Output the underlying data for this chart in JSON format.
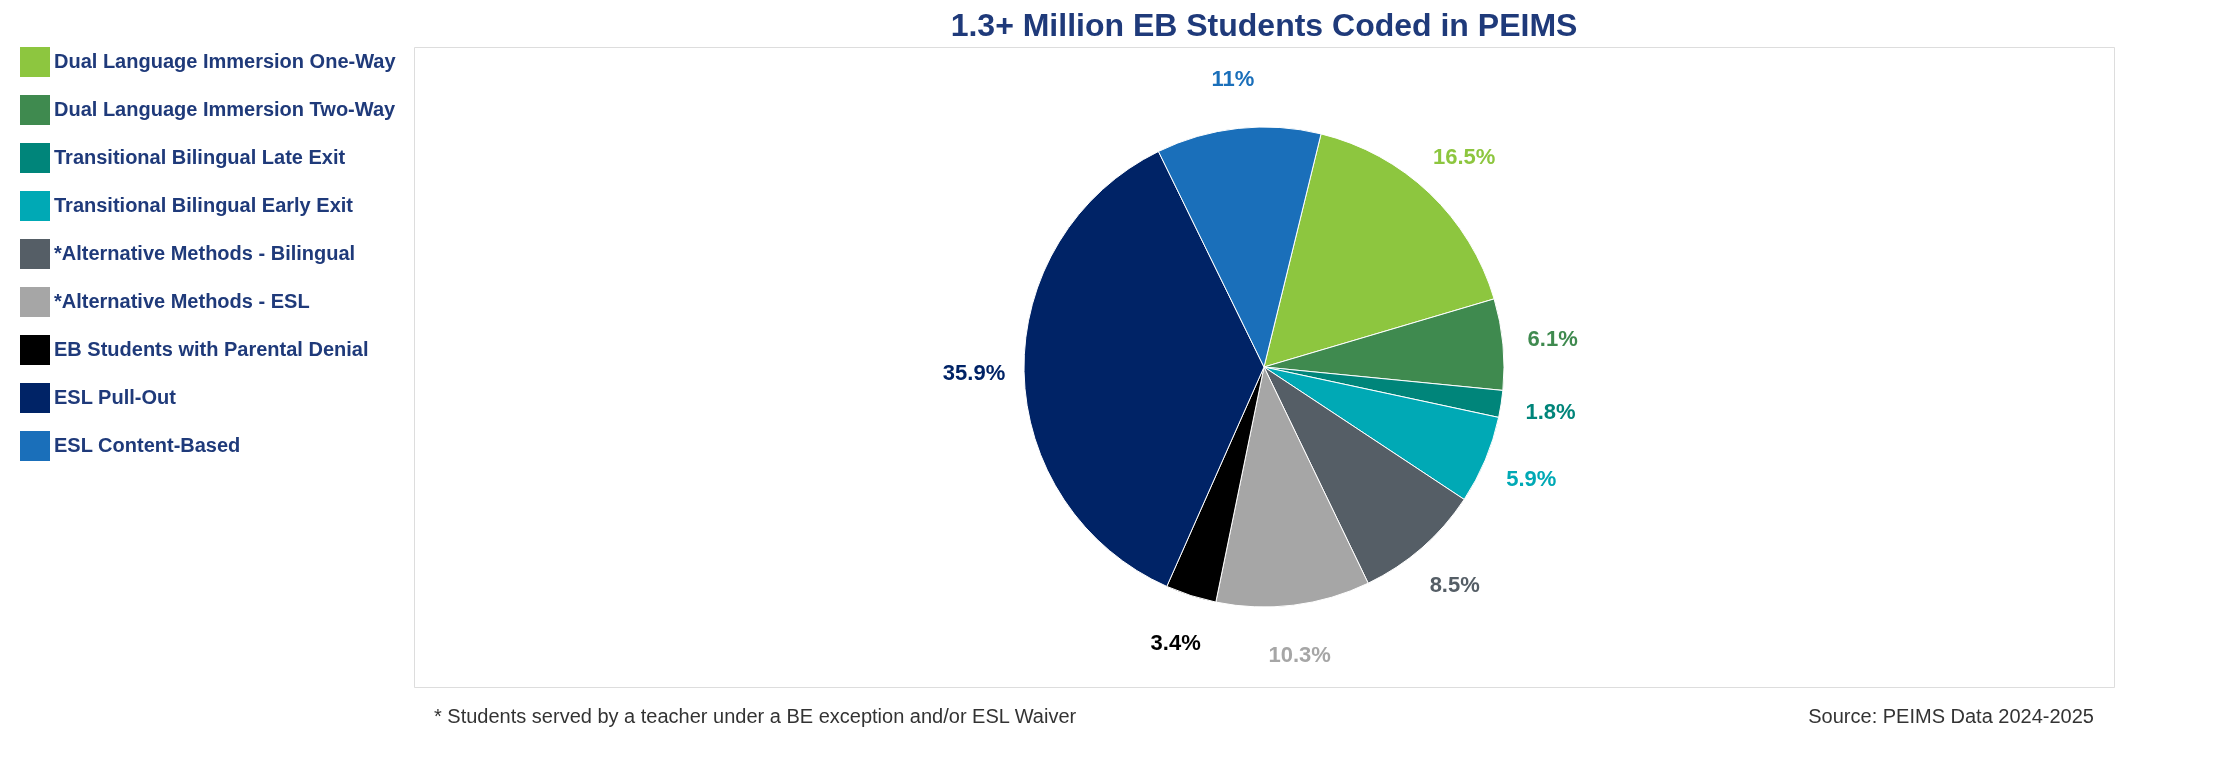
{
  "chart_data": {
    "type": "pie",
    "title": "1.3+ Million EB Students Coded in PEIMS",
    "categories": [
      "Dual Language Immersion One-Way",
      "Dual Language Immersion Two-Way",
      "Transitional Bilingual Late Exit",
      "Transitional Bilingual Early Exit",
      "*Alternative Methods - Bilingual",
      "*Alternative Methods - ESL",
      "EB Students with Parental Denial",
      "ESL Pull-Out",
      "ESL Content-Based"
    ],
    "values": [
      16.5,
      6.1,
      1.8,
      5.9,
      8.5,
      10.3,
      3.4,
      35.9,
      11
    ],
    "colors": [
      "#8dc63f",
      "#3f8a4f",
      "#00857a",
      "#00a9b5",
      "#555e66",
      "#a6a6a6",
      "#000000",
      "#002366",
      "#1a6fba"
    ],
    "value_labels": [
      "16.5%",
      "6.1%",
      "1.8%",
      "5.9%",
      "8.5%",
      "10.3%",
      "3.4%",
      "35.9%",
      "11%"
    ],
    "legend": "left",
    "annotations": [
      "* Students served by a teacher under a BE exception and/or ESL Waiver",
      "Source: PEIMS Data 2024-2025"
    ]
  }
}
